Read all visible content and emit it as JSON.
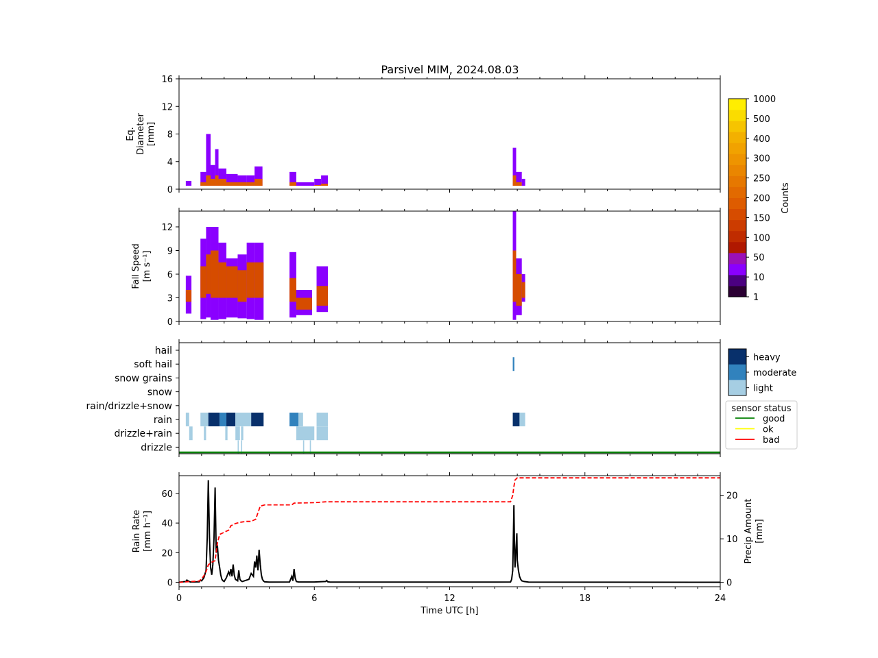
{
  "figure": {
    "title": "Parsivel MIM, 2024.08.03",
    "xlabel": "Time UTC [h]",
    "xticks": [
      "0",
      "6",
      "12",
      "18",
      "24"
    ]
  },
  "panels": {
    "diameter": {
      "ylabel_lines": [
        "Eq.",
        "Diameter",
        "[mm]"
      ],
      "yticks": [
        "0",
        "4",
        "8",
        "12",
        "16"
      ]
    },
    "speed": {
      "ylabel_lines": [
        "Fall Speed",
        "[m s⁻¹]"
      ],
      "yticks": [
        "0",
        "3",
        "6",
        "9",
        "12"
      ]
    },
    "types": {
      "labels": [
        "hail",
        "soft hail",
        "snow grains",
        "snow",
        "rain/drizzle+snow",
        "rain",
        "drizzle+rain",
        "drizzle"
      ]
    },
    "rain": {
      "ylabel_lines": [
        "Rain Rate",
        "[mm h⁻¹]"
      ],
      "yticks": [
        "0",
        "20",
        "40",
        "60"
      ],
      "y2label_lines": [
        "Precip Amount",
        "[mm]"
      ],
      "y2ticks": [
        "0",
        "10",
        "20"
      ]
    }
  },
  "colorbar": {
    "label": "Counts",
    "ticks": [
      "1",
      "10",
      "50",
      "100",
      "150",
      "200",
      "250",
      "300",
      "400",
      "500",
      "1000"
    ],
    "colors": [
      "#2b0033",
      "#4b0080",
      "#8a00ff",
      "#9b10b8",
      "#b01800",
      "#c02c00",
      "#cc3c00",
      "#d64c00",
      "#de5c00",
      "#e26a00",
      "#e67800",
      "#ea8600",
      "#ee9400",
      "#f1a200",
      "#f3b000",
      "#f6c400",
      "#fadc00",
      "#ffee00"
    ]
  },
  "intensity_legend": {
    "items": [
      {
        "label": "heavy",
        "color": "#08306b"
      },
      {
        "label": "moderate",
        "color": "#3182bd"
      },
      {
        "label": "light",
        "color": "#a6cee3"
      }
    ]
  },
  "status_legend": {
    "title": "sensor status",
    "items": [
      {
        "label": "good",
        "color": "#008000"
      },
      {
        "label": "ok",
        "color": "#ffff00"
      },
      {
        "label": "bad",
        "color": "#ff0000"
      }
    ]
  },
  "chart_data": [
    {
      "type": "heatmap",
      "name": "diameter",
      "xlabel": "Time UTC [h]",
      "ylabel": "Eq. Diameter [mm]",
      "xlim": [
        0,
        24
      ],
      "ylim": [
        0,
        16
      ],
      "columns": [
        {
          "t0": 0.3,
          "t1": 0.55,
          "y": 1.2,
          "core": 0.5
        },
        {
          "t0": 0.95,
          "t1": 1.2,
          "y": 2.5,
          "core": 1.0
        },
        {
          "t0": 1.2,
          "t1": 1.4,
          "y": 8.0,
          "core": 2.0
        },
        {
          "t0": 1.4,
          "t1": 1.6,
          "y": 3.5,
          "core": 1.5
        },
        {
          "t0": 1.6,
          "t1": 1.75,
          "y": 5.8,
          "core": 2.0
        },
        {
          "t0": 1.75,
          "t1": 2.1,
          "y": 3.0,
          "core": 1.5
        },
        {
          "t0": 2.1,
          "t1": 2.6,
          "y": 2.2,
          "core": 1.0
        },
        {
          "t0": 2.6,
          "t1": 3.0,
          "y": 2.0,
          "core": 1.0
        },
        {
          "t0": 3.0,
          "t1": 3.35,
          "y": 2.0,
          "core": 1.0
        },
        {
          "t0": 3.35,
          "t1": 3.7,
          "y": 3.3,
          "core": 1.5
        },
        {
          "t0": 4.9,
          "t1": 5.2,
          "y": 2.5,
          "core": 1.0
        },
        {
          "t0": 5.2,
          "t1": 6.0,
          "y": 1.0,
          "core": 0.4
        },
        {
          "t0": 6.0,
          "t1": 6.3,
          "y": 1.5,
          "core": 0.6
        },
        {
          "t0": 6.3,
          "t1": 6.6,
          "y": 2.0,
          "core": 0.8
        },
        {
          "t0": 14.8,
          "t1": 14.95,
          "y": 6.0,
          "core": 2.0
        },
        {
          "t0": 14.95,
          "t1": 15.2,
          "y": 2.5,
          "core": 1.0
        },
        {
          "t0": 15.2,
          "t1": 15.35,
          "y": 1.5,
          "core": 0.5
        }
      ]
    },
    {
      "type": "heatmap",
      "name": "fall_speed",
      "xlabel": "Time UTC [h]",
      "ylabel": "Fall Speed [m s-1]",
      "xlim": [
        0,
        24
      ],
      "ylim": [
        0,
        14
      ],
      "columns": [
        {
          "t0": 0.3,
          "t1": 0.55,
          "y0": 1.0,
          "y1": 5.8,
          "core": [
            2.5,
            4.0
          ]
        },
        {
          "t0": 0.95,
          "t1": 1.2,
          "y0": 0.3,
          "y1": 10.5,
          "core": [
            3.0,
            7.0
          ]
        },
        {
          "t0": 1.2,
          "t1": 1.4,
          "y0": 0.5,
          "y1": 12.0,
          "core": [
            3.5,
            8.5
          ]
        },
        {
          "t0": 1.4,
          "t1": 1.75,
          "y0": 0.2,
          "y1": 12.0,
          "core": [
            3.0,
            9.0
          ]
        },
        {
          "t0": 1.75,
          "t1": 2.1,
          "y0": 0.3,
          "y1": 10.0,
          "core": [
            3.0,
            7.5
          ]
        },
        {
          "t0": 2.1,
          "t1": 2.6,
          "y0": 0.5,
          "y1": 8.0,
          "core": [
            3.0,
            7.0
          ]
        },
        {
          "t0": 2.6,
          "t1": 3.0,
          "y0": 0.4,
          "y1": 8.5,
          "core": [
            2.5,
            6.5
          ]
        },
        {
          "t0": 3.0,
          "t1": 3.35,
          "y0": 0.3,
          "y1": 10.0,
          "core": [
            3.0,
            7.5
          ]
        },
        {
          "t0": 3.35,
          "t1": 3.75,
          "y0": 0.2,
          "y1": 10.0,
          "core": [
            3.0,
            7.5
          ]
        },
        {
          "t0": 4.9,
          "t1": 5.2,
          "y0": 0.5,
          "y1": 8.8,
          "core": [
            2.5,
            5.5
          ]
        },
        {
          "t0": 5.2,
          "t1": 5.9,
          "y0": 0.8,
          "y1": 4.0,
          "core": [
            1.5,
            3.0
          ]
        },
        {
          "t0": 6.1,
          "t1": 6.6,
          "y0": 1.2,
          "y1": 7.0,
          "core": [
            2.0,
            4.5
          ]
        },
        {
          "t0": 14.8,
          "t1": 14.95,
          "y0": 0.2,
          "y1": 14.0,
          "core": [
            2.5,
            9.0
          ]
        },
        {
          "t0": 14.95,
          "t1": 15.2,
          "y0": 0.8,
          "y1": 8.0,
          "core": [
            2.0,
            6.0
          ]
        },
        {
          "t0": 15.2,
          "t1": 15.35,
          "y0": 2.5,
          "y1": 6.0,
          "core": [
            3.0,
            5.0
          ]
        }
      ]
    },
    {
      "type": "heatmap",
      "name": "precip_type",
      "xlabel": "Time UTC [h]",
      "xlim": [
        0,
        24
      ],
      "categories": [
        "hail",
        "soft hail",
        "snow grains",
        "snow",
        "rain/drizzle+snow",
        "rain",
        "drizzle+rain",
        "drizzle"
      ],
      "segments": [
        {
          "cat": "soft hail",
          "t0": 14.8,
          "t1": 14.87,
          "level": "moderate"
        },
        {
          "cat": "rain",
          "t0": 0.3,
          "t1": 0.45,
          "level": "light"
        },
        {
          "cat": "rain",
          "t0": 0.95,
          "t1": 1.3,
          "level": "light"
        },
        {
          "cat": "rain",
          "t0": 1.3,
          "t1": 1.8,
          "level": "heavy"
        },
        {
          "cat": "rain",
          "t0": 1.8,
          "t1": 2.1,
          "level": "moderate"
        },
        {
          "cat": "rain",
          "t0": 2.1,
          "t1": 2.5,
          "level": "heavy"
        },
        {
          "cat": "rain",
          "t0": 2.5,
          "t1": 3.2,
          "level": "light"
        },
        {
          "cat": "rain",
          "t0": 3.2,
          "t1": 3.75,
          "level": "heavy"
        },
        {
          "cat": "rain",
          "t0": 4.9,
          "t1": 5.3,
          "level": "moderate"
        },
        {
          "cat": "rain",
          "t0": 5.3,
          "t1": 5.5,
          "level": "light"
        },
        {
          "cat": "rain",
          "t0": 6.1,
          "t1": 6.6,
          "level": "light"
        },
        {
          "cat": "rain",
          "t0": 14.8,
          "t1": 15.1,
          "level": "heavy"
        },
        {
          "cat": "rain",
          "t0": 15.1,
          "t1": 15.35,
          "level": "light"
        },
        {
          "cat": "drizzle+rain",
          "t0": 0.45,
          "t1": 0.6,
          "level": "light"
        },
        {
          "cat": "drizzle+rain",
          "t0": 1.1,
          "t1": 1.2,
          "level": "light"
        },
        {
          "cat": "drizzle+rain",
          "t0": 2.05,
          "t1": 2.15,
          "level": "light"
        },
        {
          "cat": "drizzle+rain",
          "t0": 2.5,
          "t1": 2.7,
          "level": "light"
        },
        {
          "cat": "drizzle+rain",
          "t0": 2.75,
          "t1": 2.85,
          "level": "light"
        },
        {
          "cat": "drizzle+rain",
          "t0": 5.2,
          "t1": 6.0,
          "level": "light"
        },
        {
          "cat": "drizzle+rain",
          "t0": 6.1,
          "t1": 6.6,
          "level": "light"
        },
        {
          "cat": "drizzle",
          "t0": 2.6,
          "t1": 2.65,
          "level": "light"
        },
        {
          "cat": "drizzle",
          "t0": 2.75,
          "t1": 2.8,
          "level": "light"
        },
        {
          "cat": "drizzle",
          "t0": 5.5,
          "t1": 5.55,
          "level": "light"
        },
        {
          "cat": "drizzle",
          "t0": 5.8,
          "t1": 5.85,
          "level": "light"
        }
      ],
      "status": [
        {
          "t0": 0,
          "t1": 24,
          "state": "good"
        }
      ]
    },
    {
      "type": "line",
      "name": "rain",
      "xlabel": "Time UTC [h]",
      "ylabel": "Rain Rate [mm h-1]",
      "y2label": "Precip Amount [mm]",
      "xlim": [
        0,
        24
      ],
      "ylim": [
        -3,
        72
      ],
      "y2lim": [
        -1,
        24.5
      ],
      "series": [
        {
          "name": "",
          "axis": "left",
          "style": "solid",
          "color": "#000000",
          "x": [
            0,
            0.3,
            0.35,
            0.4,
            0.5,
            0.9,
            0.95,
            1.0,
            1.1,
            1.2,
            1.25,
            1.3,
            1.35,
            1.4,
            1.45,
            1.5,
            1.55,
            1.6,
            1.65,
            1.7,
            1.75,
            1.8,
            1.85,
            1.9,
            1.95,
            2.0,
            2.1,
            2.2,
            2.25,
            2.3,
            2.35,
            2.4,
            2.45,
            2.5,
            2.6,
            2.65,
            2.7,
            2.75,
            2.8,
            2.9,
            3.1,
            3.2,
            3.3,
            3.35,
            3.4,
            3.45,
            3.5,
            3.55,
            3.6,
            3.65,
            3.7,
            3.75,
            3.8,
            4.0,
            4.9,
            5.0,
            5.05,
            5.1,
            5.15,
            5.2,
            5.3,
            6.0,
            6.5,
            6.55,
            6.6,
            6.7,
            7.0,
            14.0,
            14.7,
            14.75,
            14.8,
            14.82,
            14.85,
            14.88,
            14.9,
            14.95,
            14.98,
            15.0,
            15.05,
            15.1,
            15.15,
            15.2,
            15.3,
            15.5,
            24
          ],
          "y": [
            0,
            0.5,
            1.5,
            1.0,
            0.2,
            0.3,
            1.5,
            1.0,
            3.0,
            8.0,
            30.0,
            69.0,
            30.0,
            10.0,
            5.0,
            12.0,
            30.0,
            64.0,
            20.0,
            25.0,
            15.0,
            10.0,
            5.0,
            2.0,
            1.0,
            0.5,
            3.0,
            7.0,
            5.0,
            9.0,
            4.0,
            12.0,
            5.0,
            2.0,
            1.0,
            8.0,
            2.0,
            1.0,
            0.5,
            1.0,
            2.0,
            6.0,
            4.0,
            14.0,
            10.0,
            18.0,
            8.0,
            22.0,
            12.0,
            5.0,
            2.0,
            0.8,
            0.3,
            0.1,
            0.2,
            4.0,
            1.0,
            9.0,
            3.0,
            0.5,
            0.2,
            0.2,
            0.5,
            1.2,
            0.3,
            0.1,
            0.1,
            0.1,
            0.2,
            2.0,
            8.0,
            25.0,
            52.0,
            20.0,
            10.0,
            25.0,
            33.0,
            15.0,
            8.0,
            4.0,
            2.0,
            1.0,
            0.5,
            0.1,
            0
          ]
        },
        {
          "name": "",
          "axis": "right",
          "style": "dashed",
          "color": "#ff0000",
          "x": [
            0,
            0.9,
            1.0,
            1.1,
            1.2,
            1.3,
            1.4,
            1.6,
            1.7,
            1.8,
            2.0,
            2.2,
            2.3,
            2.5,
            2.7,
            3.0,
            3.2,
            3.4,
            3.5,
            3.6,
            3.8,
            5.0,
            5.1,
            6.0,
            6.5,
            7.0,
            14.7,
            14.8,
            14.85,
            14.9,
            15.0,
            15.2,
            24
          ],
          "y": [
            0,
            0.3,
            0.8,
            1.5,
            2.5,
            4.0,
            4.5,
            5.0,
            9.0,
            11.0,
            11.5,
            12.0,
            13.0,
            13.5,
            13.8,
            14.0,
            14.0,
            14.5,
            16.0,
            17.5,
            17.8,
            17.8,
            18.2,
            18.3,
            18.5,
            18.5,
            18.5,
            20.0,
            22.0,
            23.5,
            24.0,
            24.0,
            24.0
          ]
        }
      ]
    }
  ]
}
